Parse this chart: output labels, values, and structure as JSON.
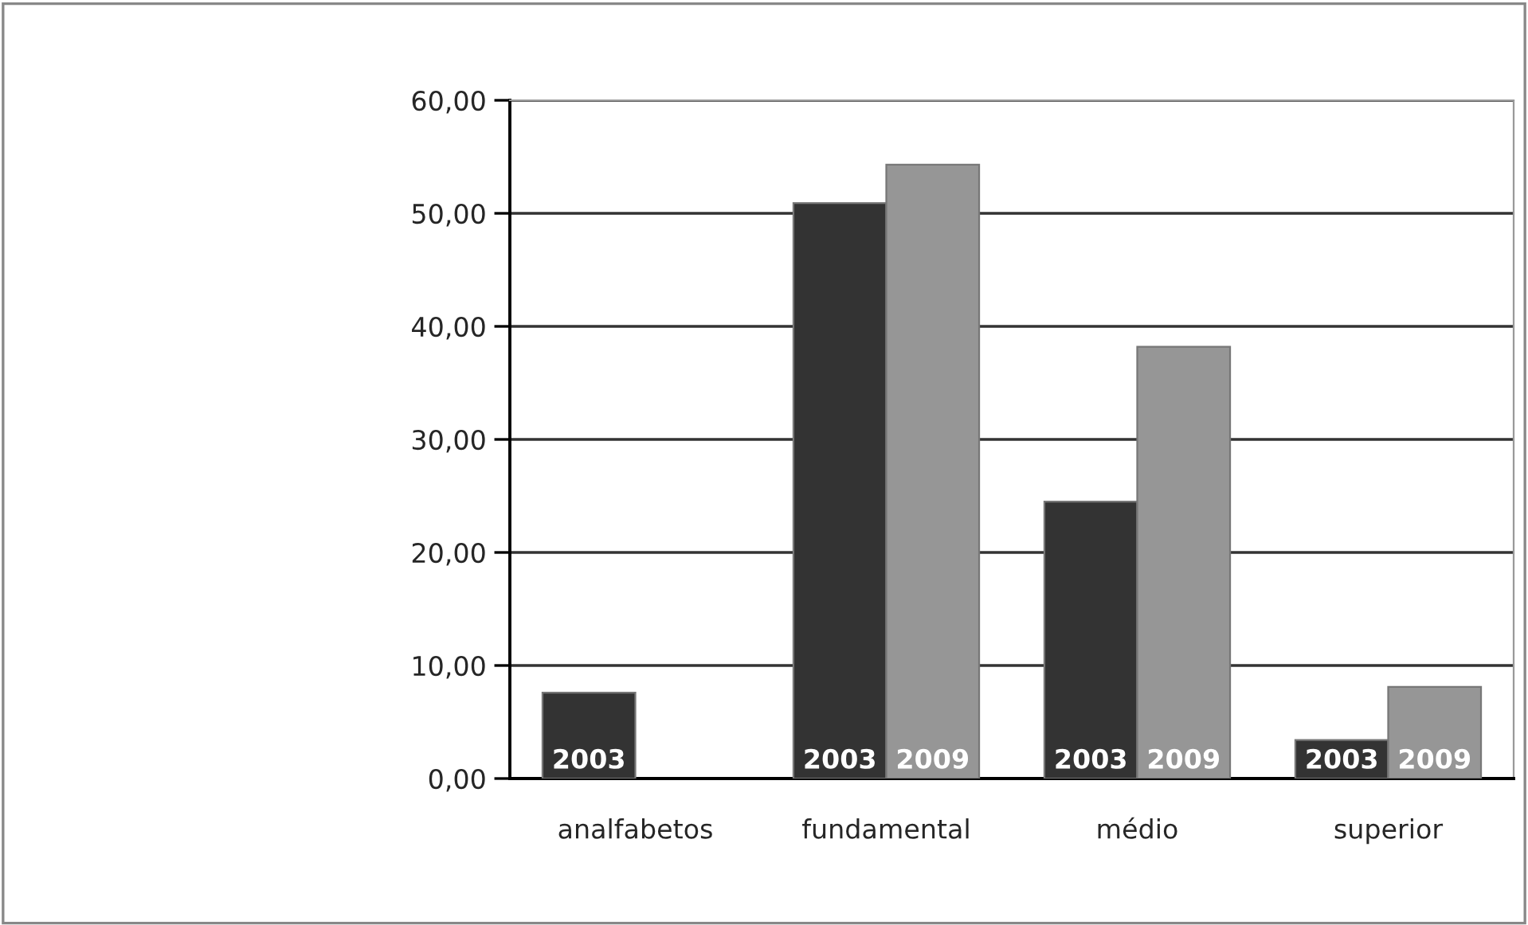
{
  "chart_data": {
    "type": "bar",
    "categories": [
      "analfabetos",
      "fundamental",
      "médio",
      "superior"
    ],
    "series": [
      {
        "name": "2003",
        "color": "#333333",
        "values": [
          7.6,
          50.9,
          24.5,
          3.4
        ]
      },
      {
        "name": "2009",
        "color": "#969696",
        "values": [
          null,
          54.3,
          38.2,
          8.1
        ]
      }
    ],
    "ylim": [
      0,
      60
    ],
    "yticks": [
      {
        "value": 0,
        "label": "0,00"
      },
      {
        "value": 10,
        "label": "10,00"
      },
      {
        "value": 20,
        "label": "20,00"
      },
      {
        "value": 30,
        "label": "30,00"
      },
      {
        "value": 40,
        "label": "40,00"
      },
      {
        "value": 50,
        "label": "50,00"
      },
      {
        "value": 60,
        "label": "60,00"
      }
    ],
    "grid": "y",
    "legend": false
  }
}
